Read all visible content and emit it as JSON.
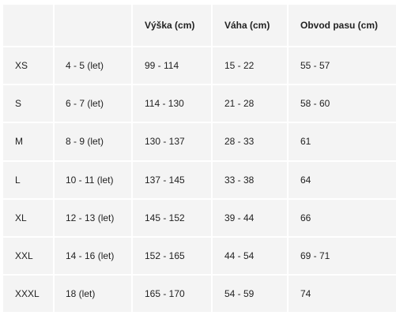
{
  "headers": {
    "size": "",
    "age": "",
    "height": "Výška (cm)",
    "weight": "Váha (cm)",
    "waist": "Obvod pasu (cm)"
  },
  "rows": [
    {
      "size": "XS",
      "age": "4 - 5 (let)",
      "height": "99 - 114",
      "weight": "15 - 22",
      "waist": "55 - 57"
    },
    {
      "size": "S",
      "age": "6 - 7 (let)",
      "height": "114 - 130",
      "weight": "21 - 28",
      "waist": "58 - 60"
    },
    {
      "size": "M",
      "age": "8 - 9 (let)",
      "height": "130 - 137",
      "weight": "28 - 33",
      "waist": "61"
    },
    {
      "size": "L",
      "age": "10 - 11 (let)",
      "height": "137 - 145",
      "weight": "33 - 38",
      "waist": "64"
    },
    {
      "size": "XL",
      "age": "12 - 13 (let)",
      "height": "145 - 152",
      "weight": "39 - 44",
      "waist": "66"
    },
    {
      "size": "XXL",
      "age": "14 - 16 (let)",
      "height": "152 - 165",
      "weight": "44 - 54",
      "waist": "69 - 71"
    },
    {
      "size": "XXXL",
      "age": "18 (let)",
      "height": "165 - 170",
      "weight": "54 - 59",
      "waist": "74"
    }
  ]
}
